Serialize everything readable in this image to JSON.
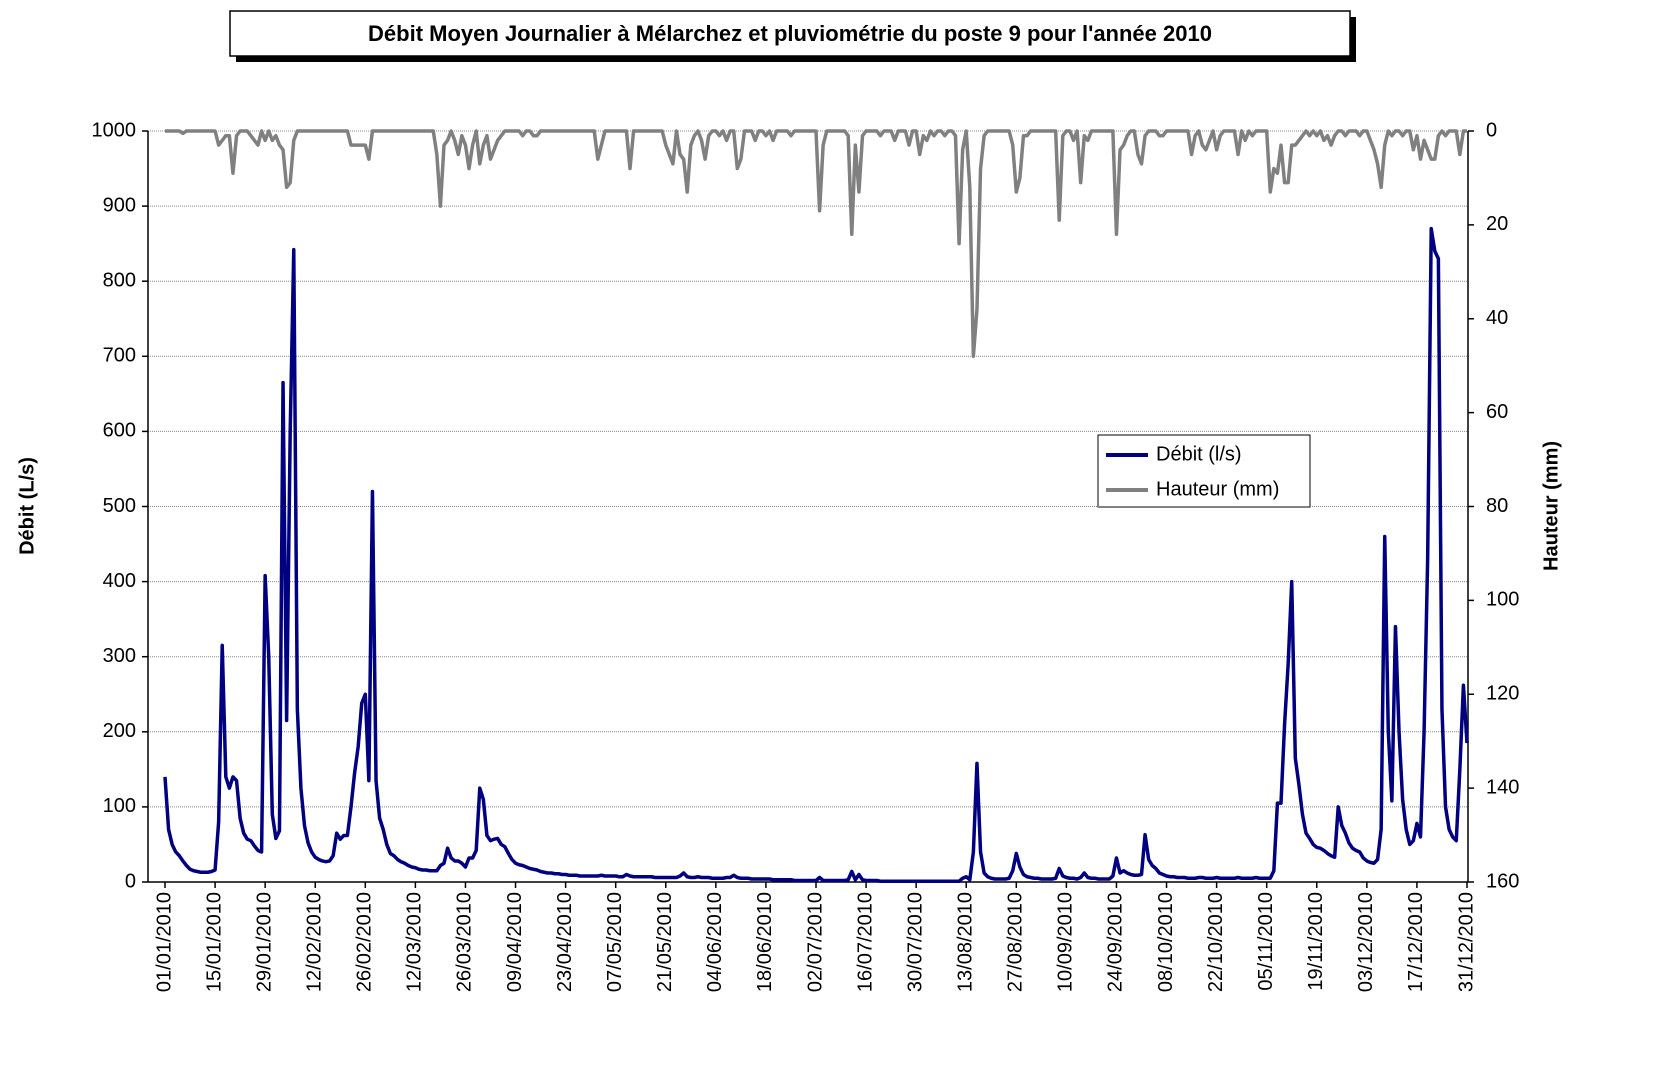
{
  "chart_data": {
    "type": "line",
    "title": "Débit Moyen Journalier à Mélarchez et pluviométrie du poste 9 pour l'année 2010",
    "y_label": "Débit (L/s)",
    "y2_label": "Hauteur (mm)",
    "ylim": [
      0,
      1000
    ],
    "yticks": [
      0,
      100,
      200,
      300,
      400,
      500,
      600,
      700,
      800,
      900,
      1000
    ],
    "y2lim": [
      160,
      0
    ],
    "y2ticks": [
      0,
      20,
      40,
      60,
      80,
      100,
      120,
      140,
      160
    ],
    "grid": true,
    "legend": "center right",
    "categories": [
      "01/01/2010",
      null,
      null,
      null,
      null,
      null,
      null,
      null,
      null,
      null,
      null,
      null,
      null,
      null,
      "15/01/2010",
      null,
      null,
      null,
      null,
      null,
      null,
      null,
      null,
      null,
      null,
      null,
      null,
      null,
      "29/01/2010",
      null,
      null,
      null,
      null,
      null,
      null,
      null,
      null,
      null,
      null,
      null,
      null,
      null,
      "12/02/2010",
      null,
      null,
      null,
      null,
      null,
      null,
      null,
      null,
      null,
      null,
      null,
      null,
      null,
      "26/02/2010",
      null,
      null,
      null,
      null,
      null,
      null,
      null,
      null,
      null,
      null,
      null,
      null,
      null,
      "12/03/2010",
      null,
      null,
      null,
      null,
      null,
      null,
      null,
      null,
      null,
      null,
      null,
      null,
      null,
      "26/03/2010",
      null,
      null,
      null,
      null,
      null,
      null,
      null,
      null,
      null,
      null,
      null,
      null,
      null,
      "09/04/2010",
      null,
      null,
      null,
      null,
      null,
      null,
      null,
      null,
      null,
      null,
      null,
      null,
      null,
      "23/04/2010",
      null,
      null,
      null,
      null,
      null,
      null,
      null,
      null,
      null,
      null,
      null,
      null,
      null,
      "07/05/2010",
      null,
      null,
      null,
      null,
      null,
      null,
      null,
      null,
      null,
      null,
      null,
      null,
      null,
      "21/05/2010",
      null,
      null,
      null,
      null,
      null,
      null,
      null,
      null,
      null,
      null,
      null,
      null,
      null,
      "04/06/2010",
      null,
      null,
      null,
      null,
      null,
      null,
      null,
      null,
      null,
      null,
      null,
      null,
      null,
      "18/06/2010",
      null,
      null,
      null,
      null,
      null,
      null,
      null,
      null,
      null,
      null,
      null,
      null,
      null,
      "02/07/2010",
      null,
      null,
      null,
      null,
      null,
      null,
      null,
      null,
      null,
      null,
      null,
      null,
      null,
      "16/07/2010",
      null,
      null,
      null,
      null,
      null,
      null,
      null,
      null,
      null,
      null,
      null,
      null,
      null,
      "30/07/2010",
      null,
      null,
      null,
      null,
      null,
      null,
      null,
      null,
      null,
      null,
      null,
      null,
      null,
      "13/08/2010",
      null,
      null,
      null,
      null,
      null,
      null,
      null,
      null,
      null,
      null,
      null,
      null,
      null,
      "27/08/2010",
      null,
      null,
      null,
      null,
      null,
      null,
      null,
      null,
      null,
      null,
      null,
      null,
      null,
      "10/09/2010",
      null,
      null,
      null,
      null,
      null,
      null,
      null,
      null,
      null,
      null,
      null,
      null,
      null,
      "24/09/2010",
      null,
      null,
      null,
      null,
      null,
      null,
      null,
      null,
      null,
      null,
      null,
      null,
      null,
      "08/10/2010",
      null,
      null,
      null,
      null,
      null,
      null,
      null,
      null,
      null,
      null,
      null,
      null,
      null,
      "22/10/2010",
      null,
      null,
      null,
      null,
      null,
      null,
      null,
      null,
      null,
      null,
      null,
      null,
      null,
      "05/11/2010",
      null,
      null,
      null,
      null,
      null,
      null,
      null,
      null,
      null,
      null,
      null,
      null,
      null,
      "19/11/2010",
      null,
      null,
      null,
      null,
      null,
      null,
      null,
      null,
      null,
      null,
      null,
      null,
      null,
      "03/12/2010",
      null,
      null,
      null,
      null,
      null,
      null,
      null,
      null,
      null,
      null,
      null,
      null,
      null,
      "17/12/2010",
      null,
      null,
      null,
      null,
      null,
      null,
      null,
      null,
      null,
      null,
      null,
      null,
      null,
      "31/12/2010"
    ],
    "series": [
      {
        "name": "Débit (l/s)",
        "color": "#000080",
        "values": [
          140,
          70,
          50,
          40,
          35,
          28,
          22,
          17,
          15,
          14,
          13,
          13,
          13,
          14,
          16,
          80,
          315,
          140,
          125,
          140,
          135,
          85,
          65,
          57,
          55,
          48,
          42,
          40,
          408,
          300,
          90,
          58,
          68,
          665,
          215,
          600,
          842,
          230,
          125,
          75,
          52,
          40,
          33,
          30,
          28,
          27,
          28,
          35,
          65,
          57,
          62,
          62,
          100,
          145,
          180,
          238,
          250,
          135,
          520,
          135,
          85,
          70,
          50,
          38,
          35,
          30,
          27,
          25,
          22,
          20,
          19,
          17,
          16,
          16,
          15,
          15,
          15,
          22,
          25,
          45,
          32,
          28,
          28,
          25,
          20,
          32,
          32,
          42,
          125,
          110,
          62,
          55,
          57,
          58,
          50,
          47,
          38,
          30,
          25,
          23,
          22,
          20,
          18,
          17,
          16,
          14,
          13,
          12,
          12,
          11,
          11,
          10,
          10,
          9,
          9,
          9,
          8,
          8,
          8,
          8,
          8,
          8,
          9,
          8,
          8,
          8,
          8,
          7,
          7,
          10,
          8,
          7,
          7,
          7,
          7,
          7,
          7,
          6,
          6,
          6,
          6,
          6,
          6,
          6,
          8,
          12,
          7,
          6,
          6,
          7,
          6,
          6,
          6,
          5,
          5,
          5,
          5,
          6,
          6,
          9,
          6,
          5,
          5,
          5,
          4,
          4,
          4,
          4,
          4,
          4,
          3,
          3,
          3,
          3,
          3,
          3,
          2,
          2,
          2,
          2,
          2,
          2,
          2,
          6,
          2,
          2,
          2,
          2,
          2,
          2,
          2,
          3,
          14,
          3,
          10,
          3,
          2,
          2,
          2,
          2,
          1,
          1,
          1,
          1,
          1,
          1,
          1,
          1,
          1,
          1,
          1,
          1,
          1,
          1,
          1,
          1,
          1,
          1,
          1,
          1,
          1,
          1,
          1,
          5,
          7,
          3,
          40,
          158,
          40,
          12,
          7,
          5,
          4,
          4,
          4,
          4,
          5,
          15,
          38,
          20,
          10,
          7,
          6,
          5,
          5,
          4,
          4,
          4,
          4,
          5,
          18,
          8,
          6,
          5,
          5,
          4,
          6,
          12,
          6,
          5,
          5,
          4,
          4,
          4,
          4,
          8,
          32,
          12,
          15,
          12,
          10,
          9,
          9,
          10,
          63,
          30,
          22,
          18,
          12,
          10,
          8,
          7,
          7,
          6,
          6,
          6,
          5,
          5,
          5,
          6,
          6,
          5,
          5,
          5,
          6,
          5,
          5,
          5,
          5,
          5,
          6,
          5,
          5,
          5,
          5,
          6,
          5,
          5,
          5,
          5,
          15,
          105,
          105,
          210,
          290,
          400,
          165,
          130,
          90,
          65,
          58,
          50,
          46,
          45,
          42,
          38,
          35,
          33,
          100,
          75,
          65,
          52,
          45,
          42,
          40,
          32,
          28,
          26,
          25,
          30,
          70,
          460,
          200,
          108,
          340,
          200,
          110,
          70,
          50,
          55,
          78,
          60,
          200,
          430,
          870,
          840,
          830,
          230,
          100,
          70,
          60,
          55,
          150,
          262,
          185
        ]
      },
      {
        "name": "Hauteur (mm)",
        "color": "#808080",
        "axis": "y2",
        "values": [
          0,
          0,
          0,
          0,
          0,
          0.5,
          0,
          0,
          0,
          0,
          0,
          0,
          0,
          0,
          0,
          3,
          2,
          1,
          1,
          9,
          1,
          0,
          0,
          0,
          1,
          2,
          3,
          0,
          2,
          0,
          2,
          1,
          3,
          4,
          12,
          11,
          2,
          0,
          0,
          0,
          0,
          0,
          0,
          0,
          0,
          0,
          0,
          0,
          0,
          0,
          0,
          0,
          3,
          3,
          3,
          3,
          3,
          6,
          0,
          0,
          0,
          0,
          0,
          0,
          0,
          0,
          0,
          0,
          0,
          0,
          0,
          0,
          0,
          0,
          0,
          0,
          5,
          16,
          3,
          2,
          0,
          2,
          5,
          1,
          3,
          8,
          3,
          0,
          7,
          3,
          1,
          6,
          4,
          2,
          1,
          0,
          0,
          0,
          0,
          0,
          1,
          0,
          0,
          1,
          1,
          0,
          0,
          0,
          0,
          0,
          0,
          0,
          0,
          0,
          0,
          0,
          0,
          0,
          0,
          0,
          0,
          6,
          3,
          0,
          0,
          0,
          0,
          0,
          0,
          0,
          8,
          0,
          0,
          0,
          0,
          0,
          0,
          0,
          0,
          0,
          3,
          5,
          7,
          0,
          5,
          6,
          13,
          3,
          1,
          0,
          2,
          6,
          1,
          0,
          0,
          1,
          0,
          2,
          0,
          0,
          8,
          6,
          0,
          0,
          0,
          2,
          0,
          0,
          1,
          0,
          2,
          0,
          0,
          0,
          0,
          1,
          0,
          0,
          0,
          0,
          0,
          0,
          0,
          17,
          3,
          0,
          0,
          0,
          0,
          0,
          0,
          1,
          22,
          3,
          13,
          1,
          0,
          0,
          0,
          0,
          1,
          0,
          0,
          0,
          2,
          0,
          0,
          0,
          3,
          0,
          0,
          5,
          1,
          2,
          0,
          1,
          0,
          0,
          1,
          0,
          0,
          1,
          24,
          4,
          0,
          12,
          48,
          38,
          8,
          1,
          0,
          0,
          0,
          0,
          0,
          0,
          0,
          3,
          13,
          10,
          1,
          1,
          0,
          0,
          0,
          0,
          0,
          0,
          0,
          0,
          19,
          1,
          0,
          0,
          2,
          0,
          11,
          1,
          2,
          0,
          0,
          0,
          0,
          0,
          0,
          0,
          22,
          4,
          3,
          1,
          0,
          0,
          5,
          7,
          1,
          0,
          0,
          0,
          1,
          1,
          0,
          0,
          0,
          0,
          0,
          0,
          0,
          5,
          1,
          0,
          3,
          4,
          2,
          0,
          4,
          1,
          0,
          0,
          0,
          0,
          5,
          0,
          2,
          0,
          1,
          0,
          0,
          0,
          0,
          13,
          8,
          9,
          3,
          11,
          11,
          3,
          3,
          2,
          1,
          0,
          1,
          0,
          1,
          0,
          2,
          1,
          3,
          1,
          0,
          0,
          1,
          0,
          0,
          0,
          1,
          0,
          0,
          2,
          4,
          7,
          12,
          3,
          0,
          1,
          0,
          0,
          1,
          0,
          0,
          4,
          1,
          6,
          2,
          4,
          6,
          6,
          1,
          0,
          1,
          0,
          0,
          0,
          5,
          0,
          0
        ]
      }
    ]
  }
}
